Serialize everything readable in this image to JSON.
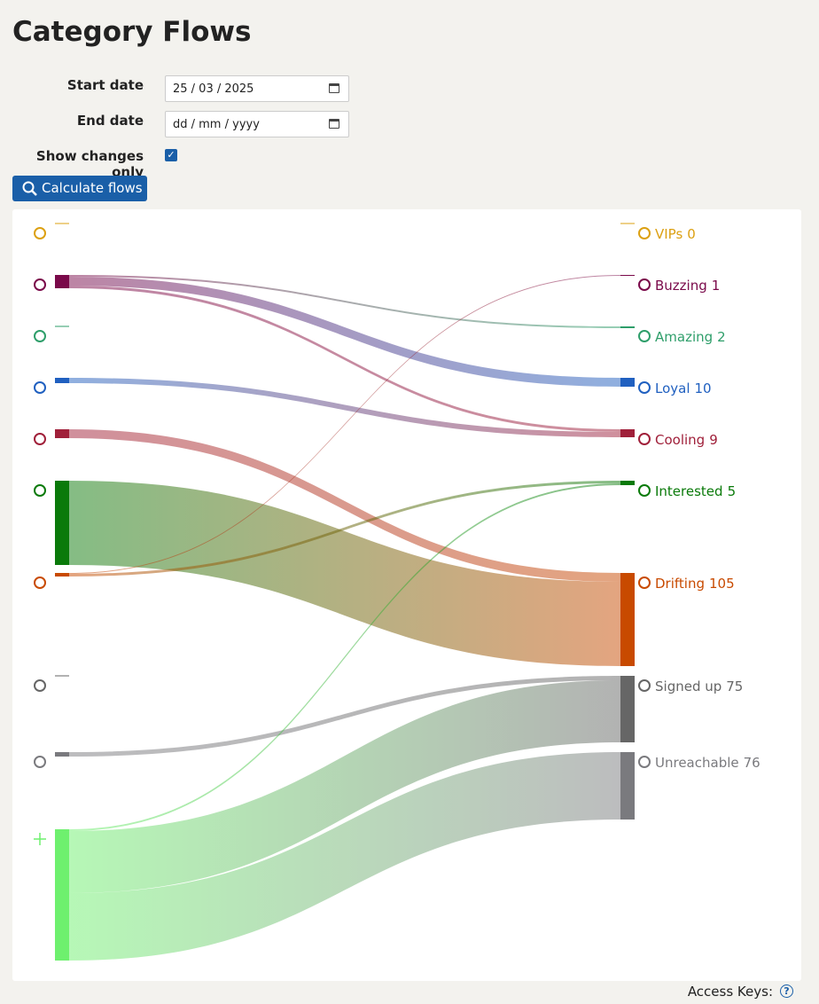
{
  "header": {
    "title": "Category Flows"
  },
  "form": {
    "start_label": "Start date",
    "start_value": "25 / 03 / 2025",
    "end_label": "End date",
    "end_value": "dd / mm / yyyy",
    "changes_label": "Show changes only",
    "button": "Calculate flows"
  },
  "sankey": {
    "nodes": [
      {
        "name": "VIPs",
        "count": 0,
        "color": "#dca012"
      },
      {
        "name": "Buzzing",
        "count": 1,
        "color": "#7a0a4a"
      },
      {
        "name": "Amazing",
        "count": 2,
        "color": "#2e9e6a"
      },
      {
        "name": "Loyal",
        "count": 10,
        "color": "#2060c0"
      },
      {
        "name": "Cooling",
        "count": 9,
        "color": "#a0203a"
      },
      {
        "name": "Interested",
        "count": 5,
        "color": "#0a7a0a"
      },
      {
        "name": "Drifting",
        "count": 105,
        "color": "#c84a00"
      },
      {
        "name": "Signed up",
        "count": 75,
        "color": "#666666"
      },
      {
        "name": "Unreachable",
        "count": 76,
        "color": "#7a7a7e"
      }
    ],
    "new_color": "#6ef06e",
    "flows": [
      {
        "from": 1,
        "to": 2,
        "value": 2
      },
      {
        "from": 1,
        "to": 3,
        "value": 10
      },
      {
        "from": 1,
        "to": 4,
        "value": 3
      },
      {
        "from": 3,
        "to": 4,
        "value": 6
      },
      {
        "from": 4,
        "to": 6,
        "value": 10
      },
      {
        "from": 5,
        "to": 6,
        "value": 95
      },
      {
        "from": 6,
        "to": 1,
        "value": 1
      },
      {
        "from": 6,
        "to": 5,
        "value": 3
      },
      {
        "from": 8,
        "to": 7,
        "value": 5
      },
      {
        "from": "new",
        "to": 5,
        "value": 2
      },
      {
        "from": "new",
        "to": 7,
        "value": 70
      },
      {
        "from": "new",
        "to": 8,
        "value": 76
      }
    ]
  },
  "footer": {
    "access_keys": "Access Keys:"
  }
}
